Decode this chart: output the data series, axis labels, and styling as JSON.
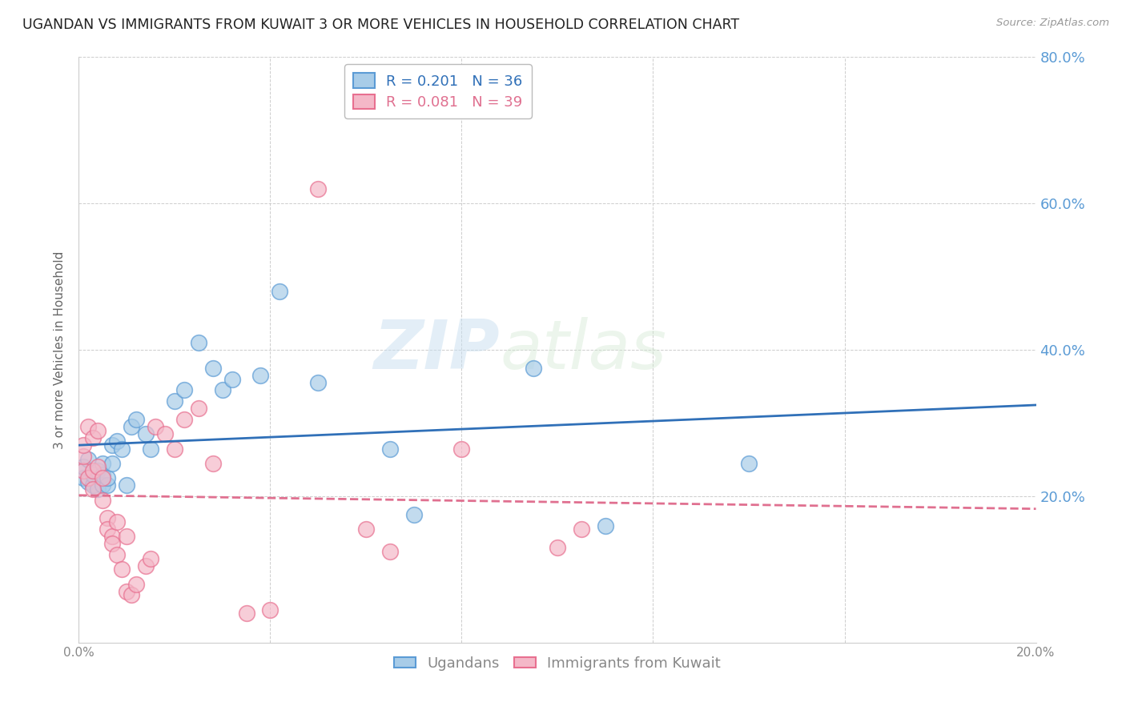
{
  "title": "UGANDAN VS IMMIGRANTS FROM KUWAIT 3 OR MORE VEHICLES IN HOUSEHOLD CORRELATION CHART",
  "source": "Source: ZipAtlas.com",
  "ylabel": "3 or more Vehicles in Household",
  "xlim": [
    0.0,
    0.2
  ],
  "ylim": [
    0.0,
    0.8
  ],
  "xticks": [
    0.0,
    0.04,
    0.08,
    0.12,
    0.16,
    0.2
  ],
  "yticks": [
    0.0,
    0.2,
    0.4,
    0.6,
    0.8
  ],
  "xtick_labels": [
    "0.0%",
    "",
    "",
    "",
    "",
    "20.0%"
  ],
  "ytick_labels": [
    "",
    "20.0%",
    "40.0%",
    "60.0%",
    "80.0%"
  ],
  "blue_R": 0.201,
  "blue_N": 36,
  "pink_R": 0.081,
  "pink_N": 39,
  "blue_color": "#a8cce8",
  "pink_color": "#f4b8c8",
  "blue_edge_color": "#5b9bd5",
  "pink_edge_color": "#e87090",
  "blue_line_color": "#3070b8",
  "pink_line_color": "#e07090",
  "grid_color": "#c8c8c8",
  "right_axis_color": "#5b9bd5",
  "watermark_zip": "ZIP",
  "watermark_atlas": "atlas",
  "blue_x": [
    0.001,
    0.001,
    0.002,
    0.002,
    0.003,
    0.003,
    0.004,
    0.004,
    0.005,
    0.005,
    0.005,
    0.006,
    0.006,
    0.007,
    0.007,
    0.008,
    0.009,
    0.01,
    0.011,
    0.012,
    0.014,
    0.015,
    0.02,
    0.022,
    0.025,
    0.028,
    0.03,
    0.032,
    0.038,
    0.042,
    0.05,
    0.065,
    0.07,
    0.095,
    0.11,
    0.14
  ],
  "blue_y": [
    0.225,
    0.24,
    0.22,
    0.25,
    0.215,
    0.23,
    0.21,
    0.235,
    0.215,
    0.23,
    0.245,
    0.215,
    0.225,
    0.245,
    0.27,
    0.275,
    0.265,
    0.215,
    0.295,
    0.305,
    0.285,
    0.265,
    0.33,
    0.345,
    0.41,
    0.375,
    0.345,
    0.36,
    0.365,
    0.48,
    0.355,
    0.265,
    0.175,
    0.375,
    0.16,
    0.245
  ],
  "pink_x": [
    0.001,
    0.001,
    0.001,
    0.002,
    0.002,
    0.003,
    0.003,
    0.003,
    0.004,
    0.004,
    0.005,
    0.005,
    0.006,
    0.006,
    0.007,
    0.007,
    0.008,
    0.008,
    0.009,
    0.01,
    0.01,
    0.011,
    0.012,
    0.014,
    0.015,
    0.016,
    0.018,
    0.02,
    0.022,
    0.025,
    0.028,
    0.035,
    0.04,
    0.05,
    0.06,
    0.065,
    0.08,
    0.1,
    0.105
  ],
  "pink_y": [
    0.235,
    0.255,
    0.27,
    0.225,
    0.295,
    0.21,
    0.235,
    0.28,
    0.24,
    0.29,
    0.225,
    0.195,
    0.17,
    0.155,
    0.145,
    0.135,
    0.165,
    0.12,
    0.1,
    0.145,
    0.07,
    0.065,
    0.08,
    0.105,
    0.115,
    0.295,
    0.285,
    0.265,
    0.305,
    0.32,
    0.245,
    0.04,
    0.045,
    0.62,
    0.155,
    0.125,
    0.265,
    0.13,
    0.155
  ]
}
